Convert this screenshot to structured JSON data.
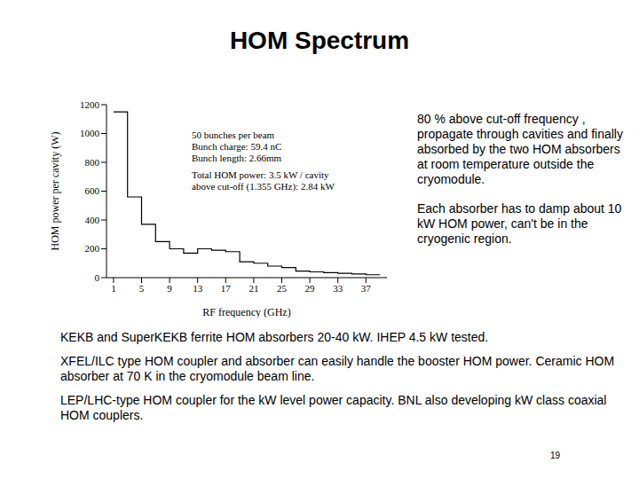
{
  "title": "HOM Spectrum",
  "chart_data": {
    "type": "histogram",
    "xlabel": "RF frequency (GHz)",
    "ylabel": "HOM power per cavity (W)",
    "bins": [
      1,
      3,
      5,
      7,
      9,
      11,
      13,
      15,
      17,
      19,
      21,
      23,
      25,
      27,
      29,
      31,
      33,
      35,
      37,
      39
    ],
    "counts": [
      1150,
      560,
      370,
      250,
      200,
      170,
      200,
      190,
      180,
      110,
      100,
      80,
      70,
      45,
      40,
      35,
      30,
      25,
      20
    ],
    "color": "#000000",
    "xlim": [
      0,
      40
    ],
    "ylim": [
      0,
      1200
    ],
    "xticks": [
      1,
      5,
      9,
      13,
      17,
      21,
      25,
      29,
      33,
      37
    ],
    "yticks": [
      0,
      200,
      400,
      600,
      800,
      1000,
      1200
    ],
    "annotations": [
      "50 bunches per beam",
      "Bunch charge: 59.4 nC",
      "Bunch length: 2.66mm",
      "Total HOM power: 3.5 kW / cavity",
      "above cut-off (1.355 GHz): 2.84 kW"
    ]
  },
  "side_text": [
    "80 % above cut-off frequency , propagate through cavities and finally absorbed by the two HOM absorbers at room temperature outside the cryomodule.",
    "Each absorber has to damp about 10 kW HOM power, can't be in the cryogenic region."
  ],
  "notes": [
    "KEKB and SuperKEKB ferrite HOM absorbers 20-40 kW. IHEP 4.5 kW tested.",
    "XFEL/ILC type HOM coupler and absorber can easily handle the booster HOM power. Ceramic HOM absorber at 70 K in the cryomodule beam line.",
    "LEP/LHC-type HOM coupler for the kW level power capacity. BNL also developing kW class coaxial HOM couplers."
  ],
  "page_number": 19
}
